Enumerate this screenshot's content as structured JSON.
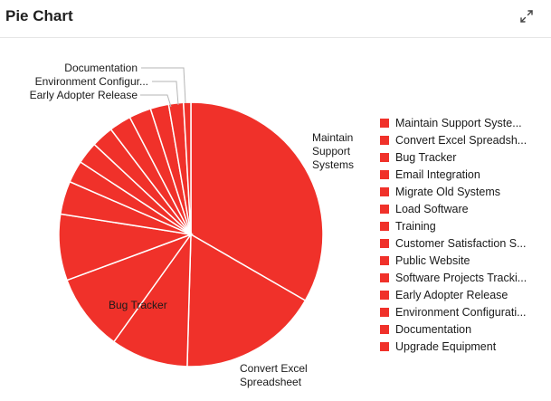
{
  "header": {
    "title": "Pie Chart",
    "expand_icon": "expand-arrows-icon"
  },
  "colors": {
    "slice": "#f0312a",
    "slice_border": "#ffffff",
    "leader_line": "#b5b5b5"
  },
  "chart_data": {
    "type": "pie",
    "title": "Pie Chart",
    "categories": [
      "Maintain Support Systems",
      "Convert Excel Spreadsheet",
      "Bug Tracker",
      "Email Integration",
      "Migrate Old Systems",
      "Load Software",
      "Training",
      "Customer Satisfaction Survey",
      "Public Website",
      "Software Projects Tracking",
      "Early Adopter Release",
      "Environment Configuration",
      "Documentation",
      "Upgrade Equipment"
    ],
    "values": [
      37,
      19,
      10.5,
      10.5,
      9,
      4.5,
      3,
      3,
      3,
      3,
      3,
      2.5,
      2,
      1
    ],
    "legend": {
      "position": "right",
      "entries": [
        "Maintain Support Syste...",
        "Convert Excel Spreadsh...",
        "Bug Tracker",
        "Email Integration",
        "Migrate Old Systems",
        "Load Software",
        "Training",
        "Customer Satisfaction S...",
        "Public Website",
        "Software Projects Tracki...",
        "Early Adopter Release",
        "Environment Configurati...",
        "Documentation",
        "Upgrade Equipment"
      ]
    },
    "slice_labels": {
      "maintain": [
        "Maintain",
        "Support",
        "Systems"
      ],
      "convert": [
        "Convert Excel",
        "Spreadsheet"
      ],
      "bug": "Bug Tracker",
      "documentation": "Documentation",
      "environment": "Environment Configur...",
      "early_adopter": "Early Adopter Release"
    }
  }
}
